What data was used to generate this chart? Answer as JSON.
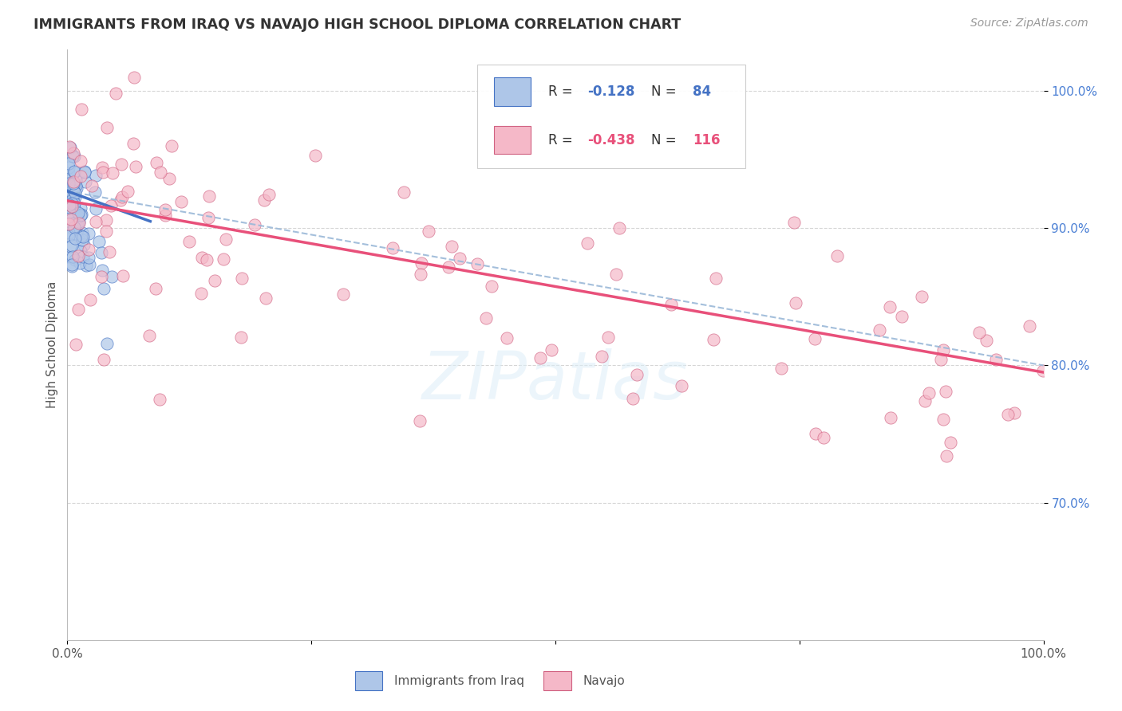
{
  "title": "IMMIGRANTS FROM IRAQ VS NAVAJO HIGH SCHOOL DIPLOMA CORRELATION CHART",
  "source": "Source: ZipAtlas.com",
  "ylabel": "High School Diploma",
  "legend_label1": "Immigrants from Iraq",
  "legend_label2": "Navajo",
  "r1": "-0.128",
  "n1": "84",
  "r2": "-0.438",
  "n2": "116",
  "color_iraq": "#aec6e8",
  "color_navajo": "#f5b8c8",
  "trendline_iraq_solid": "#4472c4",
  "trendline_iraq_dash": "#9ab8d8",
  "trendline_navajo": "#e8507a",
  "background_color": "#ffffff",
  "grid_color": "#cccccc",
  "watermark": "ZIPatlas",
  "xmin": 0.0,
  "xmax": 1.0,
  "ymin": 0.6,
  "ymax": 1.03,
  "ytick_vals": [
    0.7,
    0.8,
    0.9,
    1.0
  ],
  "ytick_labels": [
    "70.0%",
    "80.0%",
    "90.0%",
    "100.0%"
  ],
  "xtick_vals": [
    0.0,
    0.25,
    0.5,
    0.75,
    1.0
  ],
  "xtick_labels": [
    "0.0%",
    "",
    "",
    "",
    "100.0%"
  ],
  "iraq_trendline_x0": 0.0,
  "iraq_trendline_x1": 0.085,
  "iraq_trendline_y0": 0.927,
  "iraq_trendline_y1": 0.905,
  "iraq_trendline_dash_x0": 0.0,
  "iraq_trendline_dash_x1": 1.0,
  "iraq_trendline_dash_y0": 0.927,
  "iraq_trendline_dash_y1": 0.8,
  "navajo_trendline_x0": 0.0,
  "navajo_trendline_x1": 1.0,
  "navajo_trendline_y0": 0.92,
  "navajo_trendline_y1": 0.795
}
